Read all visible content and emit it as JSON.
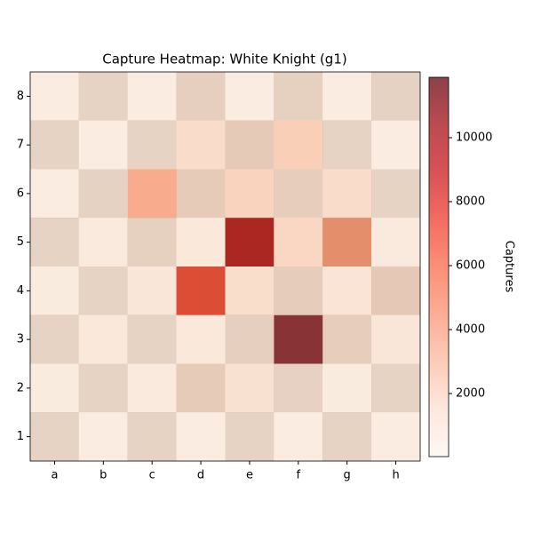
{
  "chart_data": {
    "type": "heatmap",
    "title": "Capture Heatmap: White Knight (g1)",
    "x": [
      "a",
      "b",
      "c",
      "d",
      "e",
      "f",
      "g",
      "h"
    ],
    "y": [
      "8",
      "7",
      "6",
      "5",
      "4",
      "3",
      "2",
      "1"
    ],
    "values": [
      [
        28,
        40,
        30,
        400,
        30,
        300,
        30,
        100
      ],
      [
        40,
        30,
        40,
        1500,
        800,
        2200,
        40,
        30
      ],
      [
        30,
        100,
        4000,
        700,
        2000,
        500,
        1500,
        40
      ],
      [
        40,
        200,
        300,
        300,
        10000,
        1800,
        4200,
        200
      ],
      [
        100,
        40,
        500,
        7200,
        1300,
        600,
        700,
        1000
      ],
      [
        40,
        300,
        40,
        300,
        400,
        11889,
        500,
        500
      ],
      [
        100,
        40,
        200,
        700,
        1000,
        200,
        100,
        40
      ],
      [
        40,
        30,
        40,
        30,
        40,
        30,
        40,
        30
      ]
    ],
    "colormap": "Reds",
    "zlim": [
      28,
      11889
    ],
    "zticks": [
      2000,
      4000,
      6000,
      8000,
      10000
    ],
    "colorbar_label": "Captures"
  }
}
